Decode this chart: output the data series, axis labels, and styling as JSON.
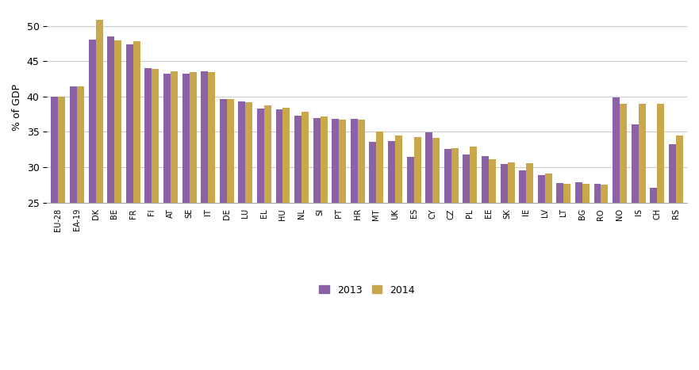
{
  "categories": [
    "EU-28",
    "EA-19",
    "DK",
    "BE",
    "FR",
    "FI",
    "AT",
    "SE",
    "IT",
    "DE",
    "LU",
    "EL",
    "HU",
    "NL",
    "SI",
    "PT",
    "HR",
    "MT",
    "UK",
    "ES",
    "CY",
    "CZ",
    "PL",
    "EE",
    "SK",
    "IE",
    "LV",
    "LT",
    "BG",
    "RO",
    "NO",
    "IS",
    "CH",
    "RS"
  ],
  "values_2013": [
    40.0,
    41.4,
    48.1,
    48.5,
    47.4,
    44.0,
    43.2,
    43.2,
    43.6,
    39.6,
    39.3,
    38.3,
    38.2,
    37.3,
    37.0,
    36.9,
    36.9,
    33.6,
    33.7,
    31.5,
    34.9,
    32.6,
    31.8,
    31.6,
    30.4,
    29.5,
    28.9,
    27.8,
    27.9,
    27.6,
    39.9,
    36.1,
    27.1,
    33.3
  ],
  "values_2014": [
    40.0,
    41.5,
    50.9,
    48.0,
    47.9,
    43.9,
    43.6,
    43.5,
    43.5,
    39.6,
    39.2,
    38.8,
    38.4,
    37.9,
    37.2,
    36.7,
    36.7,
    35.0,
    34.5,
    34.3,
    34.1,
    32.7,
    32.9,
    31.1,
    30.7,
    30.6,
    29.1,
    27.6,
    27.6,
    27.5,
    39.0,
    39.0,
    39.0,
    34.5
  ],
  "color_2013": "#8B62A8",
  "color_2014": "#C8A84B",
  "ylabel": "% of GDP",
  "ylim_min": 25,
  "ylim_max": 52,
  "yticks": [
    25,
    30,
    35,
    40,
    45,
    50
  ],
  "legend_2013": "2013",
  "legend_2014": "2014",
  "bar_width": 0.38,
  "bg_color": "#ffffff",
  "grid_color": "#cccccc"
}
